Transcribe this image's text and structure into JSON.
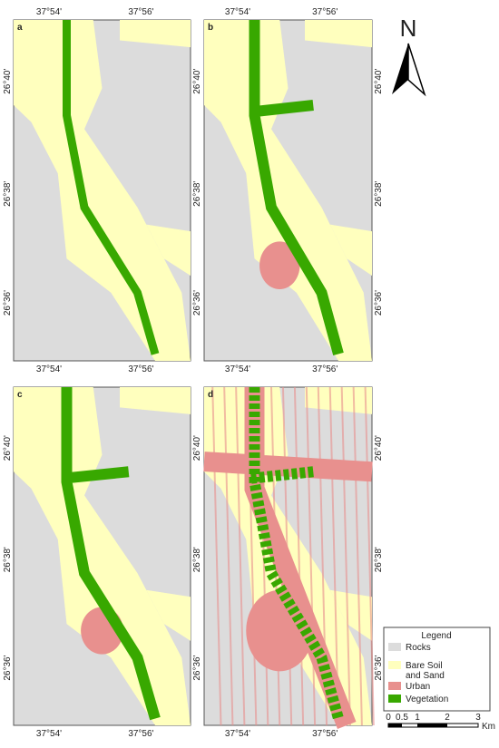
{
  "panels": [
    {
      "label": "a",
      "top_lon_labels": [
        "37°54'",
        "37°56'"
      ],
      "bottom_lon_labels": [
        "37°54'",
        "37°56'"
      ],
      "left_lat_labels": [
        "26°40'",
        "26°38'",
        "26°36'"
      ],
      "right_lat_labels": [
        "26°40'",
        "26°38'",
        "26°36'"
      ]
    },
    {
      "label": "b",
      "top_lon_labels": [
        "37°54'",
        "37°56'"
      ],
      "bottom_lon_labels": [
        "37°54'",
        "37°56'"
      ],
      "right_lat_labels": [
        "26°40'",
        "26°38'",
        "26°36'"
      ]
    },
    {
      "label": "c",
      "bottom_lon_labels": [
        "37°54'",
        "37°56'"
      ],
      "left_lat_labels": [
        "26°40'",
        "26°38'",
        "26°36'"
      ],
      "right_lat_labels": [
        "26°40'",
        "26°38'",
        "26°36'"
      ]
    },
    {
      "label": "d",
      "bottom_lon_labels": [
        "37°54'",
        "37°56'"
      ],
      "right_lat_labels": [
        "26°40'",
        "26°38'",
        "26°36'"
      ]
    }
  ],
  "north": "N",
  "legend": {
    "title": "Legend",
    "items": [
      {
        "label": "Rocks",
        "color": "#dcdcdc"
      },
      {
        "label": "Bare Soil\nand Sand",
        "color": "#ffffbe"
      },
      {
        "label": "Urban",
        "color": "#e8908e"
      },
      {
        "label": "Vegetation",
        "color": "#38a800"
      }
    ]
  },
  "scale_bar": {
    "labels": [
      "0",
      "0.5",
      "1",
      "2",
      "3"
    ],
    "unit": "Km"
  }
}
